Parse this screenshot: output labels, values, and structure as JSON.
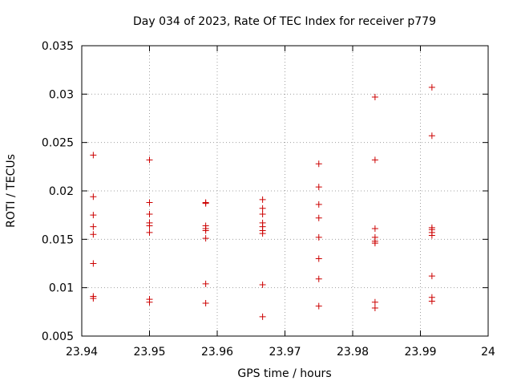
{
  "chart_data": {
    "type": "scatter",
    "title": "Day 034 of 2023, Rate Of TEC Index for receiver p779",
    "xlabel": "GPS time / hours",
    "ylabel": "ROTI / TECUs",
    "xlim": [
      23.94,
      24.0
    ],
    "ylim": [
      0.005,
      0.035
    ],
    "xticks": [
      23.94,
      23.95,
      23.96,
      23.97,
      23.98,
      23.99,
      24.0
    ],
    "xtick_labels": [
      "23.94",
      "23.95",
      "23.96",
      "23.97",
      "23.98",
      "23.99",
      "24"
    ],
    "yticks": [
      0.005,
      0.01,
      0.015,
      0.02,
      0.025,
      0.03,
      0.035
    ],
    "ytick_labels": [
      "0.005",
      "0.01",
      "0.015",
      "0.02",
      "0.025",
      "0.03",
      "0.035"
    ],
    "grid": true,
    "marker_color": "#cc0000",
    "series": [
      {
        "name": "ROTI",
        "points": [
          [
            23.9417,
            0.0237
          ],
          [
            23.9417,
            0.0194
          ],
          [
            23.9417,
            0.0175
          ],
          [
            23.9417,
            0.0163
          ],
          [
            23.9417,
            0.0155
          ],
          [
            23.9417,
            0.0125
          ],
          [
            23.9417,
            0.0091
          ],
          [
            23.9417,
            0.0089
          ],
          [
            23.95,
            0.0232
          ],
          [
            23.95,
            0.0188
          ],
          [
            23.95,
            0.0176
          ],
          [
            23.95,
            0.0167
          ],
          [
            23.95,
            0.0164
          ],
          [
            23.95,
            0.0157
          ],
          [
            23.95,
            0.0088
          ],
          [
            23.95,
            0.0085
          ],
          [
            23.9583,
            0.0188
          ],
          [
            23.9583,
            0.0187
          ],
          [
            23.9583,
            0.0164
          ],
          [
            23.9583,
            0.0161
          ],
          [
            23.9583,
            0.0159
          ],
          [
            23.9583,
            0.0151
          ],
          [
            23.9583,
            0.0104
          ],
          [
            23.9583,
            0.0084
          ],
          [
            23.9667,
            0.0191
          ],
          [
            23.9667,
            0.0182
          ],
          [
            23.9667,
            0.0176
          ],
          [
            23.9667,
            0.0167
          ],
          [
            23.9667,
            0.0163
          ],
          [
            23.9667,
            0.0159
          ],
          [
            23.9667,
            0.0156
          ],
          [
            23.9667,
            0.0103
          ],
          [
            23.9667,
            0.007
          ],
          [
            23.975,
            0.0228
          ],
          [
            23.975,
            0.0204
          ],
          [
            23.975,
            0.0186
          ],
          [
            23.975,
            0.0172
          ],
          [
            23.975,
            0.0152
          ],
          [
            23.975,
            0.013
          ],
          [
            23.975,
            0.0109
          ],
          [
            23.975,
            0.0081
          ],
          [
            23.9833,
            0.0297
          ],
          [
            23.9833,
            0.0232
          ],
          [
            23.9833,
            0.0161
          ],
          [
            23.9833,
            0.0152
          ],
          [
            23.9833,
            0.0148
          ],
          [
            23.9833,
            0.0146
          ],
          [
            23.9833,
            0.0085
          ],
          [
            23.9833,
            0.0079
          ],
          [
            23.9917,
            0.0307
          ],
          [
            23.9917,
            0.0257
          ],
          [
            23.9917,
            0.0162
          ],
          [
            23.9917,
            0.016
          ],
          [
            23.9917,
            0.0157
          ],
          [
            23.9917,
            0.0154
          ],
          [
            23.9917,
            0.0112
          ],
          [
            23.9917,
            0.009
          ],
          [
            23.9917,
            0.0086
          ]
        ]
      }
    ]
  }
}
